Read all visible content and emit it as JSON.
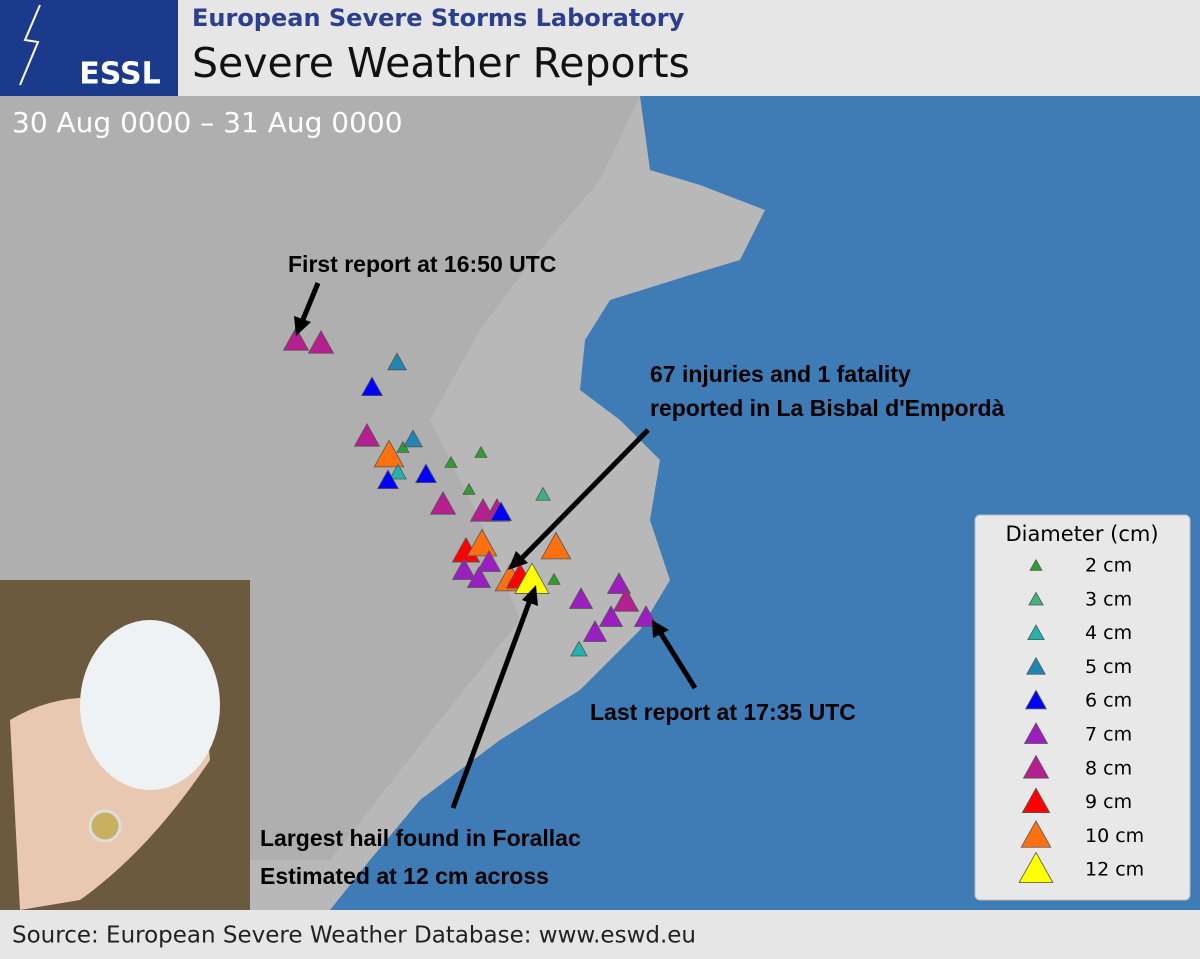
{
  "header": {
    "organization": "European Severe Storms Laboratory",
    "title": "Severe Weather Reports",
    "logo": "ESSL"
  },
  "period": "30 Aug 0000 – 31 Aug 0000",
  "annotations": [
    "First report at 16:50 UTC",
    "67 injuries and 1 fatality",
    "reported in La Bisbal d'Empordà",
    "Last report at 17:35 UTC",
    "Largest hail found in Forallac",
    "Estimated at 12 cm across"
  ],
  "legend": {
    "title": "Diameter (cm)",
    "items": [
      {
        "label": "2 cm",
        "diameter": 2,
        "color": "#2ca02c"
      },
      {
        "label": "3 cm",
        "diameter": 3,
        "color": "#3db37a"
      },
      {
        "label": "4 cm",
        "diameter": 4,
        "color": "#22b3ae"
      },
      {
        "label": "5 cm",
        "diameter": 5,
        "color": "#1f86b4"
      },
      {
        "label": "6 cm",
        "diameter": 6,
        "color": "#0000ff"
      },
      {
        "label": "7 cm",
        "diameter": 7,
        "color": "#9b1fc0"
      },
      {
        "label": "8 cm",
        "diameter": 8,
        "color": "#b51f8f"
      },
      {
        "label": "9 cm",
        "diameter": 9,
        "color": "#ff0000"
      },
      {
        "label": "10 cm",
        "diameter": 10,
        "color": "#ff7010"
      },
      {
        "label": "12 cm",
        "diameter": 12,
        "color": "#ffff00"
      }
    ]
  },
  "reports": [
    8,
    8,
    5,
    6,
    8,
    2,
    5,
    10,
    4,
    6,
    6,
    2,
    2,
    2,
    8,
    8,
    8,
    6,
    3,
    9,
    10,
    10,
    7,
    7,
    7,
    10,
    9,
    12,
    2,
    7,
    7,
    8,
    7,
    7,
    4,
    7
  ],
  "source": "Source: European Severe Weather Database: www.eswd.eu"
}
